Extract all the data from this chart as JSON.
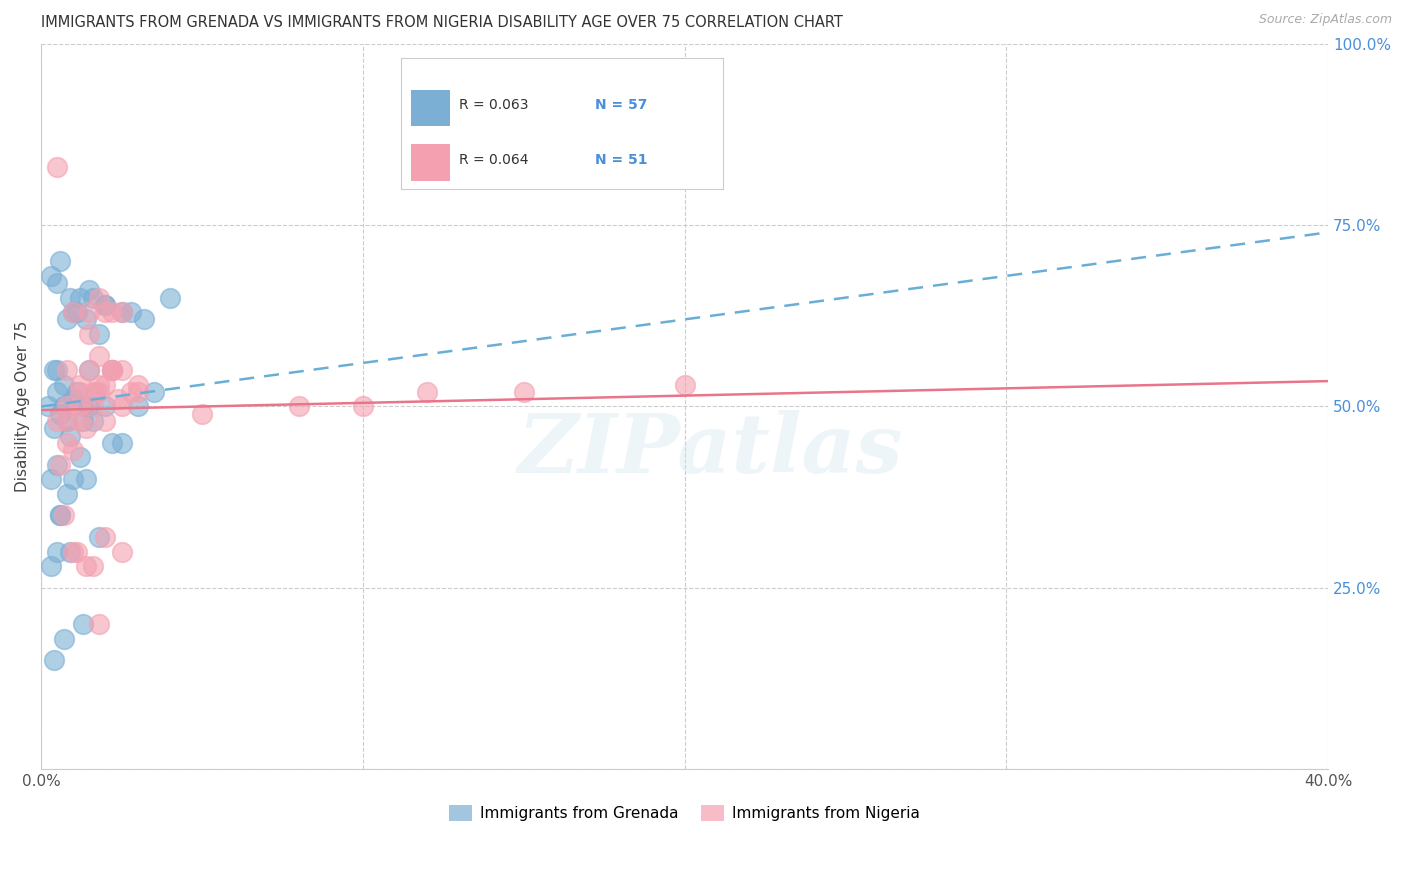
{
  "title": "IMMIGRANTS FROM GRENADA VS IMMIGRANTS FROM NIGERIA DISABILITY AGE OVER 75 CORRELATION CHART",
  "source": "Source: ZipAtlas.com",
  "ylabel": "Disability Age Over 75",
  "watermark": "ZIPatlas",
  "xlim": [
    0.0,
    40.0
  ],
  "ylim": [
    0.0,
    100.0
  ],
  "yticks": [
    0,
    25,
    50,
    75,
    100
  ],
  "ytick_labels": [
    "",
    "25.0%",
    "50.0%",
    "75.0%",
    "100.0%"
  ],
  "xticks": [
    0,
    10,
    20,
    30,
    40
  ],
  "xtick_labels": [
    "0.0%",
    "",
    "",
    "",
    "40.0%"
  ],
  "grenada_color": "#7bafd4",
  "grenada_edge_color": "#7bafd4",
  "nigeria_color": "#f4a0b0",
  "nigeria_edge_color": "#f4a0b0",
  "grenada_line_color": "#6aaed6",
  "nigeria_line_color": "#e8758a",
  "legend_label_grenada": "Immigrants from Grenada",
  "legend_label_nigeria": "Immigrants from Nigeria",
  "grenada_x": [
    1.0,
    1.5,
    2.0,
    1.2,
    0.5,
    0.8,
    1.8,
    2.5,
    3.2,
    4.0,
    0.3,
    0.6,
    0.9,
    1.1,
    1.4,
    1.6,
    2.0,
    2.8,
    0.4,
    0.7,
    0.5,
    1.3,
    0.8,
    1.7,
    2.2,
    3.5,
    0.2,
    0.6,
    1.0,
    1.5,
    0.4,
    0.9,
    1.3,
    0.7,
    1.1,
    2.0,
    1.6,
    0.5,
    0.3,
    0.8,
    1.2,
    0.6,
    1.4,
    2.5,
    0.9,
    0.5,
    0.3,
    1.8,
    0.6,
    1.0,
    1.5,
    0.4,
    2.2,
    0.7,
    1.3,
    0.5,
    3.0
  ],
  "grenada_y": [
    63,
    66,
    64,
    65,
    67,
    62,
    60,
    63,
    62,
    65,
    68,
    70,
    65,
    63,
    62,
    65,
    64,
    63,
    55,
    53,
    52,
    50,
    48,
    52,
    55,
    52,
    50,
    49,
    51,
    50,
    47,
    46,
    48,
    50,
    52,
    50,
    48,
    42,
    40,
    38,
    43,
    35,
    40,
    45,
    30,
    30,
    28,
    32,
    35,
    40,
    55,
    15,
    45,
    18,
    20,
    55,
    50
  ],
  "nigeria_x": [
    0.5,
    1.0,
    1.5,
    2.0,
    2.5,
    0.8,
    1.2,
    1.8,
    2.2,
    10.0,
    15.0,
    20.0,
    0.5,
    0.8,
    1.2,
    1.5,
    1.8,
    2.2,
    2.5,
    3.0,
    0.6,
    1.0,
    1.4,
    1.8,
    2.2,
    0.7,
    1.1,
    1.6,
    2.0,
    0.8,
    1.2,
    1.6,
    2.0,
    2.5,
    3.0,
    1.5,
    1.8,
    2.2,
    1.0,
    1.4,
    1.8,
    2.5,
    0.8,
    1.2,
    1.6,
    2.0,
    2.4,
    2.8,
    5.0,
    12.0,
    8.0
  ],
  "nigeria_y": [
    83,
    63,
    63,
    63,
    63,
    55,
    53,
    57,
    55,
    50,
    52,
    53,
    48,
    50,
    52,
    55,
    53,
    55,
    55,
    53,
    42,
    44,
    47,
    52,
    55,
    35,
    30,
    28,
    32,
    45,
    48,
    50,
    48,
    50,
    52,
    60,
    65,
    63,
    30,
    28,
    20,
    30,
    48,
    50,
    52,
    53,
    51,
    52,
    49,
    52,
    50
  ],
  "grenada_trendline_x": [
    0,
    40
  ],
  "grenada_trendline_y": [
    50.0,
    74.0
  ],
  "nigeria_trendline_x": [
    0,
    40
  ],
  "nigeria_trendline_y": [
    49.5,
    53.5
  ]
}
